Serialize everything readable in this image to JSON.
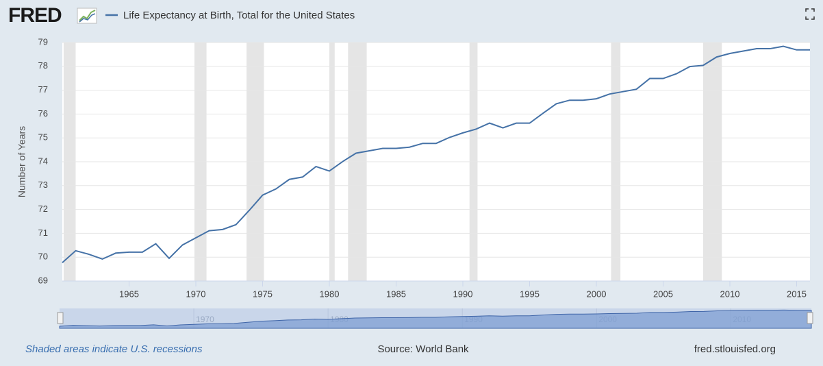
{
  "logo": "FRED",
  "chart_data": {
    "type": "line",
    "series": [
      {
        "name": "Life Expectancy at Birth, Total for the United States",
        "color": "#4572a7",
        "values": [
          69.77,
          70.27,
          70.12,
          69.92,
          70.17,
          70.21,
          70.21,
          70.56,
          69.95,
          70.51,
          70.81,
          71.11,
          71.16,
          71.36,
          71.96,
          72.6,
          72.86,
          73.26,
          73.36,
          73.8,
          73.61,
          74.01,
          74.36,
          74.46,
          74.56,
          74.56,
          74.61,
          74.77,
          74.77,
          75.02,
          75.21,
          75.37,
          75.62,
          75.42,
          75.62,
          75.62,
          76.03,
          76.43,
          76.58,
          76.58,
          76.64,
          76.84,
          76.94,
          77.04,
          77.49,
          77.49,
          77.69,
          77.99,
          78.04,
          78.39,
          78.54,
          78.64,
          78.74,
          78.74,
          78.84,
          78.69,
          78.69
        ]
      }
    ],
    "x": [
      1960,
      1961,
      1962,
      1963,
      1964,
      1965,
      1966,
      1967,
      1968,
      1969,
      1970,
      1971,
      1972,
      1973,
      1974,
      1975,
      1976,
      1977,
      1978,
      1979,
      1980,
      1981,
      1982,
      1983,
      1984,
      1985,
      1986,
      1987,
      1988,
      1989,
      1990,
      1991,
      1992,
      1993,
      1994,
      1995,
      1996,
      1997,
      1998,
      1999,
      2000,
      2001,
      2002,
      2003,
      2004,
      2005,
      2006,
      2007,
      2008,
      2009,
      2010,
      2011,
      2012,
      2013,
      2014,
      2015,
      2016
    ],
    "xlim": [
      1960,
      2016
    ],
    "xticks": [
      1965,
      1970,
      1975,
      1980,
      1985,
      1990,
      1995,
      2000,
      2005,
      2010,
      2015
    ],
    "ylim": [
      69,
      79
    ],
    "yticks": [
      69,
      70,
      71,
      72,
      73,
      74,
      75,
      76,
      77,
      78,
      79
    ],
    "y_label": "Number of Years",
    "grid": true,
    "recessions": [
      [
        1960.1,
        1961.0
      ],
      [
        1969.9,
        1970.8
      ],
      [
        1973.8,
        1975.1
      ],
      [
        1980.0,
        1980.4
      ],
      [
        1981.4,
        1982.8
      ],
      [
        1990.5,
        1991.1
      ],
      [
        2001.1,
        2001.8
      ],
      [
        2008.0,
        2009.4
      ]
    ],
    "navigator_ticks": [
      1970,
      1980,
      1990,
      2000,
      2010
    ]
  },
  "footer": {
    "note": "Shaded areas indicate U.S. recessions",
    "source": "Source: World Bank",
    "site": "fred.stlouisfed.org"
  }
}
